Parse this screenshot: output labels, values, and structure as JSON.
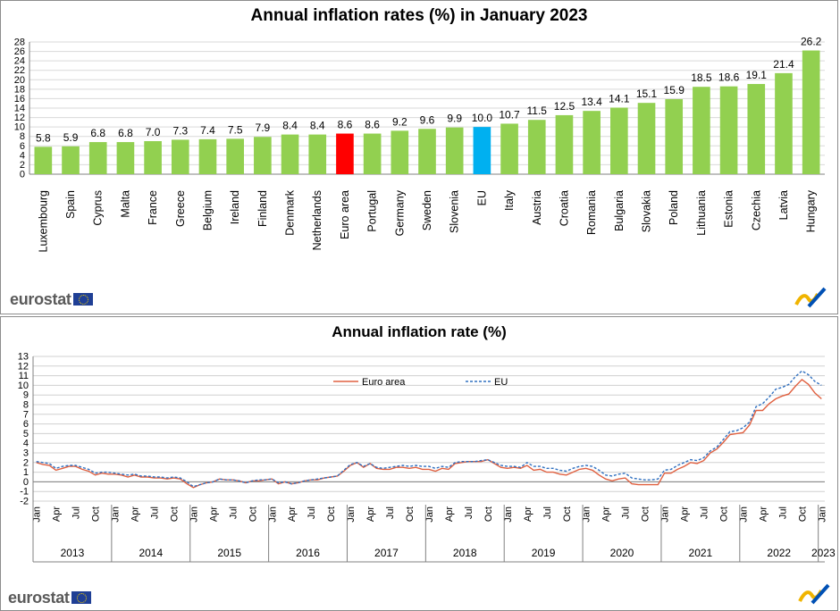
{
  "chart_data": [
    {
      "type": "bar",
      "title": "Annual inflation rates (%) in January 2023",
      "categories": [
        "Luxembourg",
        "Spain",
        "Cyprus",
        "Malta",
        "France",
        "Greece",
        "Belgium",
        "Ireland",
        "Finland",
        "Denmark",
        "Netherlands",
        "Euro area",
        "Portugal",
        "Germany",
        "Sweden",
        "Slovenia",
        "EU",
        "Italy",
        "Austria",
        "Croatia",
        "Romania",
        "Bulgaria",
        "Slovakia",
        "Poland",
        "Lithuania",
        "Estonia",
        "Czechia",
        "Latvia",
        "Hungary"
      ],
      "values": [
        5.8,
        5.9,
        6.8,
        6.8,
        7.0,
        7.3,
        7.4,
        7.5,
        7.9,
        8.4,
        8.4,
        8.6,
        8.6,
        9.2,
        9.6,
        9.9,
        10.0,
        10.7,
        11.5,
        12.5,
        13.4,
        14.1,
        15.1,
        15.9,
        18.5,
        18.6,
        19.1,
        21.4,
        26.2
      ],
      "value_labels": [
        "5.8",
        "5.9",
        "6.8",
        "6.8",
        "7.0",
        "7.3",
        "7.4",
        "7.5",
        "7.9",
        "8.4",
        "8.4",
        "8.6",
        "8.6",
        "9.2",
        "9.6",
        "9.9",
        "10.0",
        "10.7",
        "11.5",
        "12.5",
        "13.4",
        "14.1",
        "15.1",
        "15.9",
        "18.5",
        "18.6",
        "19.1",
        "21.4",
        "26.2"
      ],
      "ylim": [
        0,
        28
      ],
      "yticks": [
        "0",
        "2",
        "4",
        "6",
        "8",
        "10",
        "12",
        "14",
        "16",
        "18",
        "20",
        "22",
        "24",
        "26",
        "28"
      ],
      "grid": true,
      "colors": {
        "default": "#92d050",
        "highlight_euro_area": "#ff0000",
        "highlight_eu": "#00b0f0"
      }
    },
    {
      "type": "line",
      "title": "Annual inflation rate (%)",
      "ylim": [
        -2,
        13
      ],
      "yticks": [
        "-2",
        "-1",
        "0",
        "1",
        "2",
        "3",
        "4",
        "5",
        "6",
        "7",
        "8",
        "9",
        "10",
        "11",
        "12",
        "13"
      ],
      "grid": true,
      "legend": "top-center",
      "month_ticks": [
        "Jan",
        "Apr",
        "Jul",
        "Oct"
      ],
      "final_month_tick": "Jan",
      "years": [
        "2013",
        "2014",
        "2015",
        "2016",
        "2017",
        "2018",
        "2019",
        "2020",
        "2021",
        "2022",
        "2023"
      ],
      "series": [
        {
          "name": "Euro area",
          "color": "#e06040",
          "style": "solid",
          "values": [
            2.0,
            1.8,
            1.7,
            1.2,
            1.4,
            1.6,
            1.6,
            1.3,
            1.1,
            0.7,
            0.9,
            0.8,
            0.8,
            0.7,
            0.5,
            0.7,
            0.5,
            0.5,
            0.4,
            0.4,
            0.3,
            0.4,
            0.3,
            -0.2,
            -0.6,
            -0.3,
            -0.1,
            0.0,
            0.3,
            0.2,
            0.2,
            0.1,
            -0.1,
            0.1,
            0.1,
            0.2,
            0.3,
            -0.2,
            0.0,
            -0.2,
            -0.1,
            0.1,
            0.2,
            0.2,
            0.4,
            0.5,
            0.6,
            1.1,
            1.7,
            2.0,
            1.5,
            1.9,
            1.4,
            1.3,
            1.3,
            1.5,
            1.5,
            1.4,
            1.5,
            1.3,
            1.3,
            1.1,
            1.4,
            1.3,
            1.9,
            2.0,
            2.1,
            2.1,
            2.1,
            2.3,
            1.9,
            1.5,
            1.4,
            1.5,
            1.4,
            1.7,
            1.2,
            1.3,
            1.0,
            1.0,
            0.8,
            0.7,
            1.0,
            1.3,
            1.4,
            1.2,
            0.7,
            0.3,
            0.1,
            0.3,
            0.4,
            -0.2,
            -0.3,
            -0.3,
            -0.3,
            -0.3,
            0.9,
            0.9,
            1.3,
            1.6,
            2.0,
            1.9,
            2.2,
            3.0,
            3.4,
            4.1,
            4.9,
            5.0,
            5.1,
            5.9,
            7.4,
            7.4,
            8.1,
            8.6,
            8.9,
            9.1,
            9.9,
            10.6,
            10.1,
            9.2,
            8.6
          ]
        },
        {
          "name": "EU",
          "color": "#3070c0",
          "style": "dashed",
          "values": [
            2.1,
            2.0,
            1.9,
            1.4,
            1.6,
            1.7,
            1.7,
            1.5,
            1.3,
            0.9,
            1.0,
            1.0,
            0.9,
            0.8,
            0.7,
            0.8,
            0.6,
            0.6,
            0.5,
            0.5,
            0.4,
            0.5,
            0.4,
            0.0,
            -0.5,
            -0.3,
            -0.1,
            0.0,
            0.3,
            0.2,
            0.2,
            0.1,
            -0.1,
            0.1,
            0.2,
            0.2,
            0.3,
            -0.1,
            0.0,
            -0.2,
            -0.1,
            0.1,
            0.2,
            0.3,
            0.4,
            0.5,
            0.6,
            1.2,
            1.8,
            2.0,
            1.6,
            1.9,
            1.5,
            1.4,
            1.5,
            1.6,
            1.7,
            1.6,
            1.7,
            1.6,
            1.6,
            1.4,
            1.6,
            1.5,
            2.0,
            2.1,
            2.1,
            2.1,
            2.2,
            2.3,
            2.0,
            1.7,
            1.6,
            1.6,
            1.5,
            2.0,
            1.6,
            1.6,
            1.4,
            1.4,
            1.2,
            1.1,
            1.4,
            1.6,
            1.7,
            1.6,
            1.2,
            0.7,
            0.6,
            0.8,
            0.9,
            0.4,
            0.3,
            0.2,
            0.2,
            0.3,
            1.2,
            1.3,
            1.7,
            2.0,
            2.3,
            2.2,
            2.5,
            3.2,
            3.6,
            4.4,
            5.2,
            5.3,
            5.6,
            6.2,
            7.8,
            8.1,
            8.8,
            9.6,
            9.8,
            10.1,
            10.9,
            11.5,
            11.1,
            10.4,
            10.0
          ]
        }
      ]
    }
  ],
  "branding": {
    "logo_text": "eurostat",
    "flag_icon": "eu-flag-icon",
    "mark_icon": "eurostat-brand-mark-icon",
    "mark_colors": [
      "#f0b400",
      "#0050b4"
    ]
  }
}
